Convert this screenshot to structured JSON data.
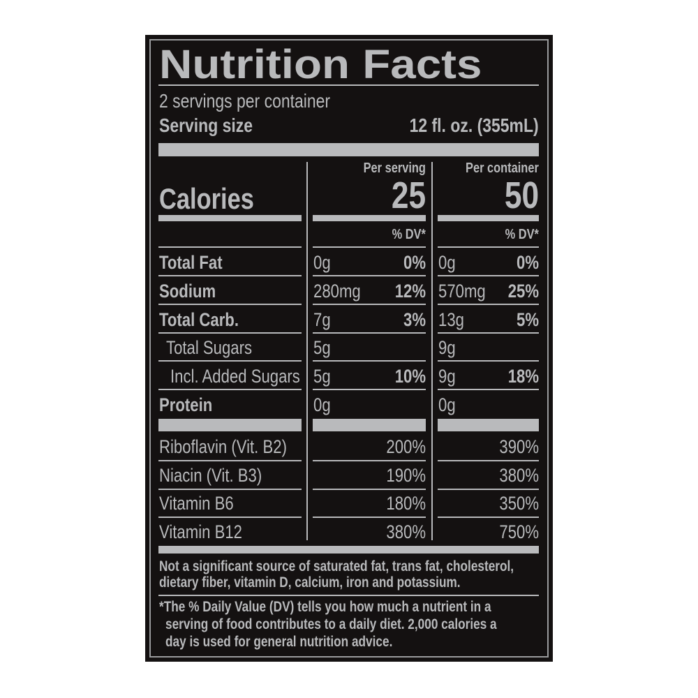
{
  "title": "Nutrition Facts",
  "servings_per_container": "2 servings per container",
  "serving_size_label": "Serving size",
  "serving_size_value": "12 fl. oz. (355mL)",
  "columns": {
    "per_serving": "Per serving",
    "per_container": "Per container"
  },
  "calories": {
    "label": "Calories",
    "per_serving": "25",
    "per_container": "50"
  },
  "dv_header": "% DV*",
  "nutrients": [
    {
      "name": "Total Fat",
      "bold": true,
      "s_amt": "0g",
      "s_dv": "0%",
      "c_amt": "0g",
      "c_dv": "0%"
    },
    {
      "name": "Sodium",
      "bold": true,
      "s_amt": "280mg",
      "s_dv": "12%",
      "c_amt": "570mg",
      "c_dv": "25%"
    },
    {
      "name": "Total Carb.",
      "bold": true,
      "s_amt": "7g",
      "s_dv": "3%",
      "c_amt": "13g",
      "c_dv": "5%"
    },
    {
      "name": "Total Sugars",
      "bold": false,
      "indent": 1,
      "s_amt": "5g",
      "s_dv": "",
      "c_amt": "9g",
      "c_dv": ""
    },
    {
      "name": "Incl. Added Sugars",
      "bold": false,
      "indent": 2,
      "s_amt": "5g",
      "s_dv": "10%",
      "c_amt": "9g",
      "c_dv": "18%"
    },
    {
      "name": "Protein",
      "bold": true,
      "s_amt": "0g",
      "s_dv": "",
      "c_amt": "0g",
      "c_dv": ""
    }
  ],
  "vitamins": [
    {
      "name": "Riboflavin (Vit. B2)",
      "s_dv": "200%",
      "c_dv": "390%"
    },
    {
      "name": "Niacin (Vit. B3)",
      "s_dv": "190%",
      "c_dv": "380%"
    },
    {
      "name": "Vitamin B6",
      "s_dv": "180%",
      "c_dv": "350%"
    },
    {
      "name": "Vitamin B12",
      "s_dv": "380%",
      "c_dv": "750%"
    }
  ],
  "not_significant": [
    "Not a significant source of saturated fat, trans fat, cholesterol,",
    "dietary fiber, vitamin D, calcium, iron and potassium."
  ],
  "footnote": [
    "*The % Daily Value (DV) tells you how much a nutrient in a",
    "serving of food contributes to a daily diet. 2,000 calories a",
    "day is used for general nutrition advice."
  ],
  "colors": {
    "background": "#141111",
    "text": "#b9babc"
  }
}
